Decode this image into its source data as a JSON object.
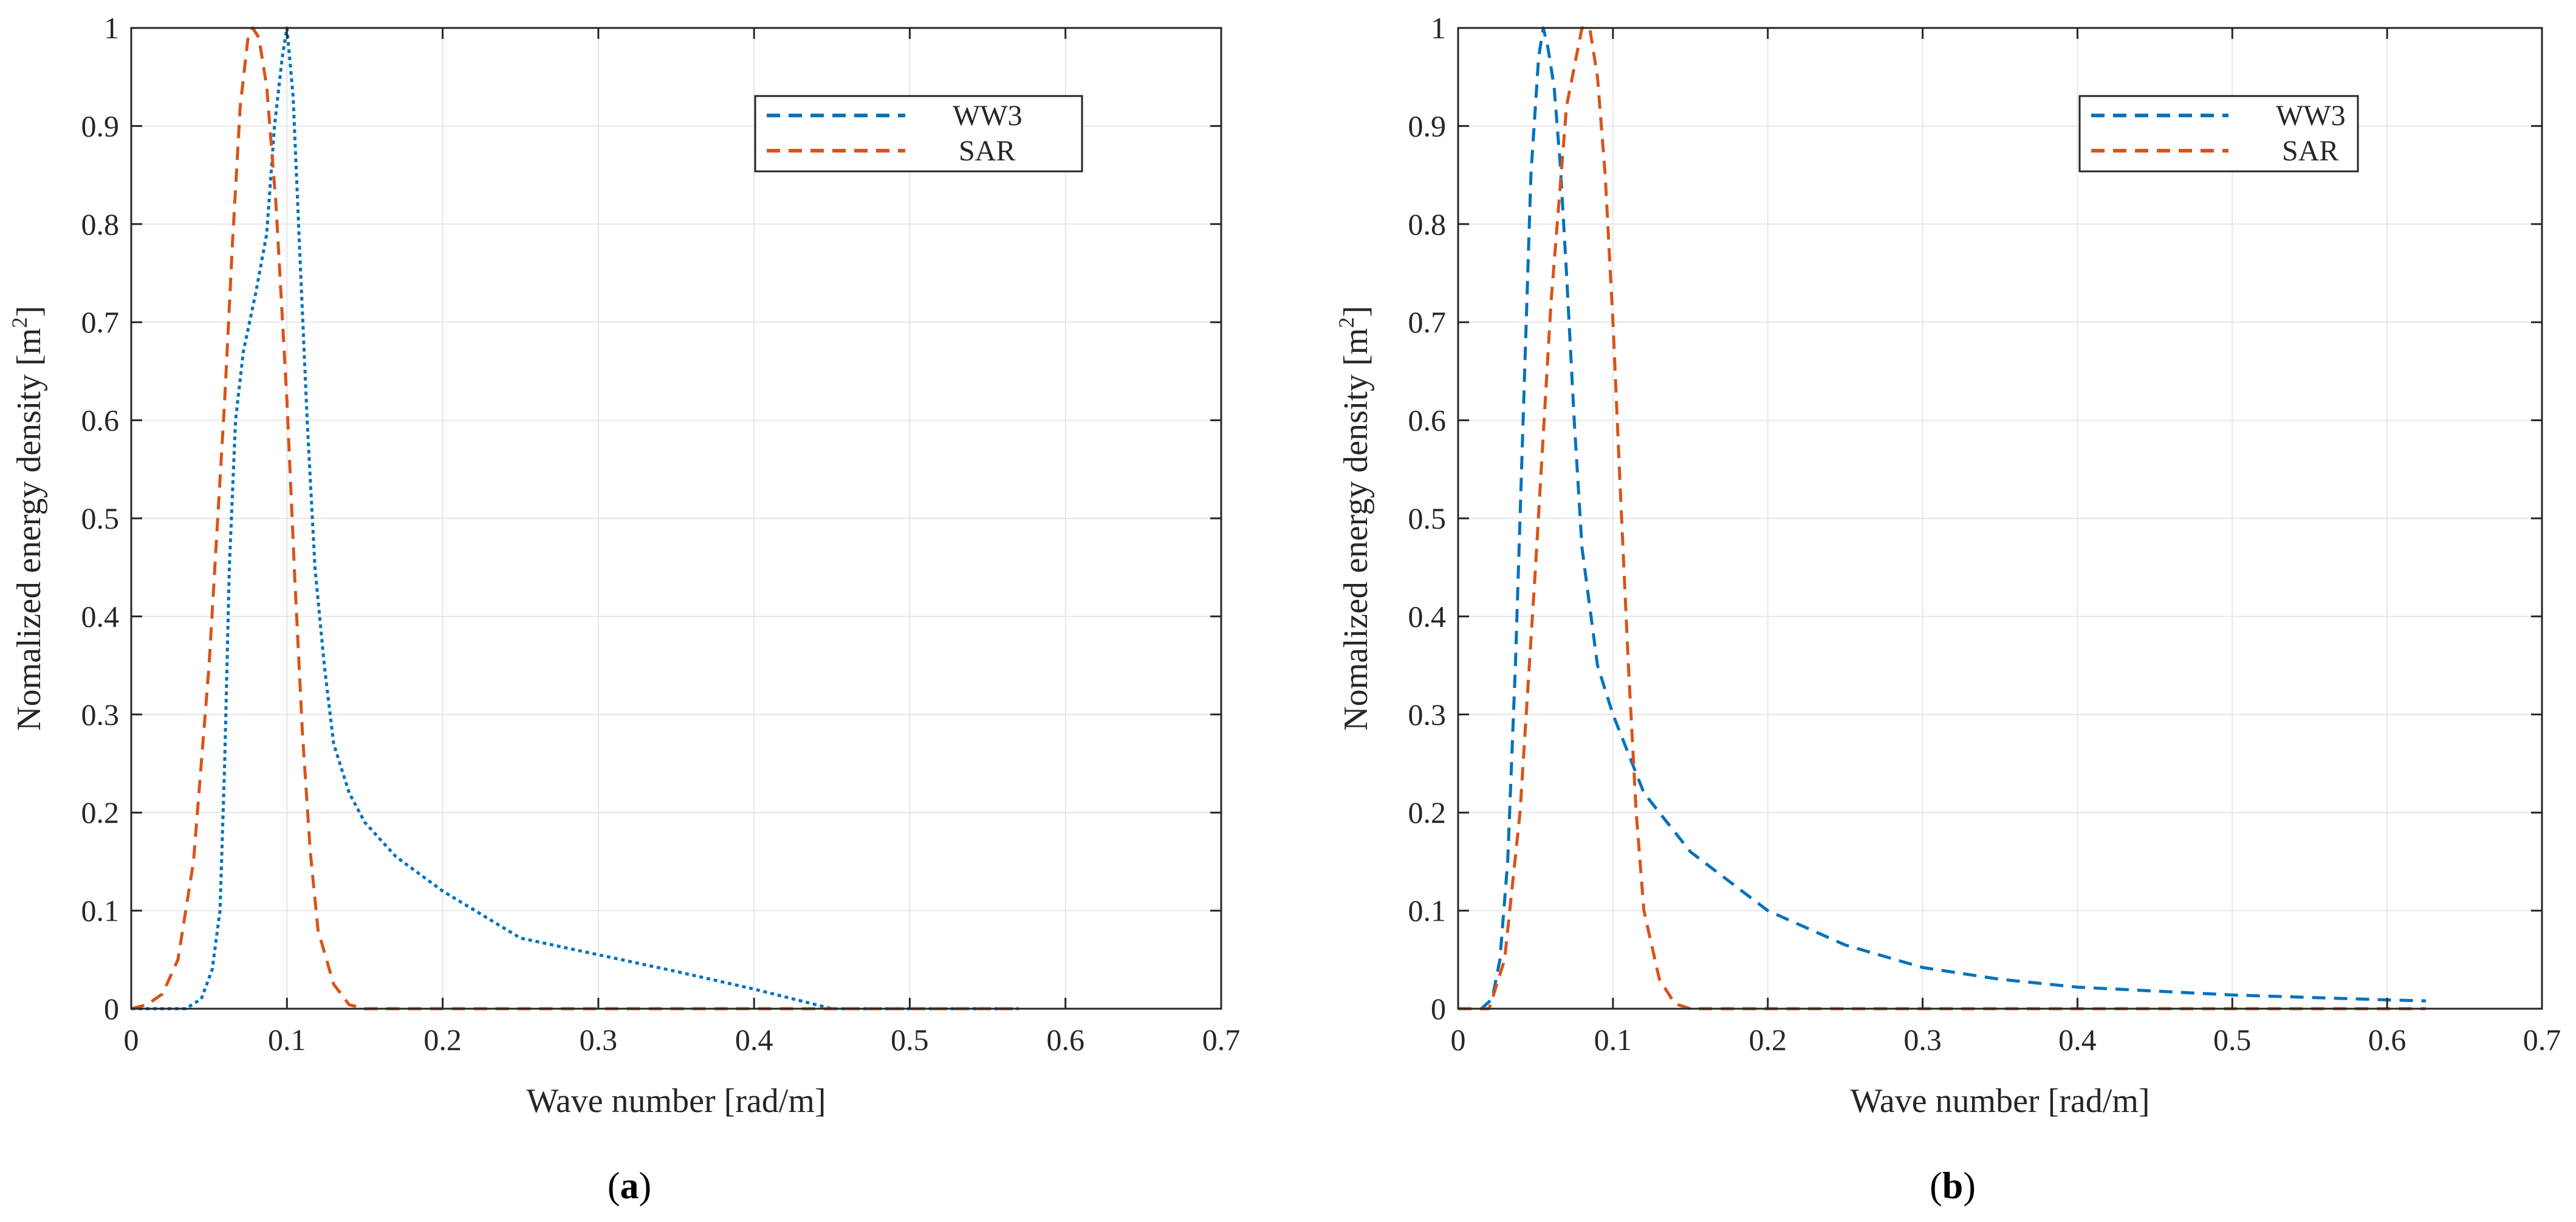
{
  "chart_data": [
    {
      "type": "line",
      "panel": "a",
      "caption": {
        "open": "(",
        "letter": "a",
        "close": ")"
      },
      "title": "",
      "xlabel": "Wave number [rad/m]",
      "ylabel_prefix": "Nomalized energy density [m",
      "ylabel_sup": "2",
      "ylabel_suffix": "]",
      "xlim": [
        0,
        0.7
      ],
      "ylim": [
        0,
        1
      ],
      "xticks": [
        0,
        0.1,
        0.2,
        0.3,
        0.4,
        0.5,
        0.6,
        0.7
      ],
      "xtick_labels": [
        "0",
        "0.1",
        "0.2",
        "0.3",
        "0.4",
        "0.5",
        "0.6",
        "0.7"
      ],
      "yticks": [
        0,
        0.1,
        0.2,
        0.3,
        0.4,
        0.5,
        0.6,
        0.7,
        0.8,
        0.9,
        1
      ],
      "ytick_labels": [
        "0",
        "0.1",
        "0.2",
        "0.3",
        "0.4",
        "0.5",
        "0.6",
        "0.7",
        "0.8",
        "0.9",
        "1"
      ],
      "grid": true,
      "legend_position": "top-right",
      "series": [
        {
          "name": "WW3",
          "color": "#0072BD",
          "dash": "dotted",
          "points": [
            [
              0.0,
              0
            ],
            [
              0.035,
              0
            ],
            [
              0.045,
              0.01
            ],
            [
              0.052,
              0.04
            ],
            [
              0.057,
              0.1
            ],
            [
              0.06,
              0.25
            ],
            [
              0.063,
              0.45
            ],
            [
              0.067,
              0.6
            ],
            [
              0.072,
              0.67
            ],
            [
              0.08,
              0.73
            ],
            [
              0.087,
              0.79
            ],
            [
              0.092,
              0.9
            ],
            [
              0.097,
              0.97
            ],
            [
              0.1,
              1.0
            ],
            [
              0.104,
              0.93
            ],
            [
              0.108,
              0.78
            ],
            [
              0.113,
              0.6
            ],
            [
              0.118,
              0.45
            ],
            [
              0.124,
              0.35
            ],
            [
              0.13,
              0.27
            ],
            [
              0.14,
              0.22
            ],
            [
              0.15,
              0.19
            ],
            [
              0.17,
              0.155
            ],
            [
              0.2,
              0.12
            ],
            [
              0.25,
              0.072
            ],
            [
              0.3,
              0.055
            ],
            [
              0.35,
              0.038
            ],
            [
              0.4,
              0.02
            ],
            [
              0.45,
              0.0
            ],
            [
              0.5,
              0.0
            ],
            [
              0.57,
              0.0
            ]
          ]
        },
        {
          "name": "SAR",
          "color": "#D95319",
          "dash": "dashed",
          "points": [
            [
              0.0,
              0.0
            ],
            [
              0.01,
              0.004
            ],
            [
              0.02,
              0.015
            ],
            [
              0.03,
              0.05
            ],
            [
              0.04,
              0.15
            ],
            [
              0.05,
              0.35
            ],
            [
              0.06,
              0.62
            ],
            [
              0.065,
              0.78
            ],
            [
              0.07,
              0.92
            ],
            [
              0.075,
              0.99
            ],
            [
              0.078,
              1.0
            ],
            [
              0.082,
              0.99
            ],
            [
              0.087,
              0.94
            ],
            [
              0.093,
              0.82
            ],
            [
              0.1,
              0.62
            ],
            [
              0.105,
              0.44
            ],
            [
              0.11,
              0.28
            ],
            [
              0.115,
              0.16
            ],
            [
              0.12,
              0.08
            ],
            [
              0.13,
              0.025
            ],
            [
              0.14,
              0.004
            ],
            [
              0.15,
              0.0
            ],
            [
              0.2,
              0.0
            ],
            [
              0.3,
              0.0
            ],
            [
              0.4,
              0.0
            ],
            [
              0.5,
              0.0
            ],
            [
              0.57,
              0.0
            ]
          ]
        }
      ]
    },
    {
      "type": "line",
      "panel": "b",
      "caption": {
        "open": "(",
        "letter": "b",
        "close": ")"
      },
      "title": "",
      "xlabel": "Wave number [rad/m]",
      "ylabel_prefix": "Nomalized energy density [m",
      "ylabel_sup": "2",
      "ylabel_suffix": "]",
      "xlim": [
        0,
        0.7
      ],
      "ylim": [
        0,
        1
      ],
      "xticks": [
        0,
        0.1,
        0.2,
        0.3,
        0.4,
        0.5,
        0.6,
        0.7
      ],
      "xtick_labels": [
        "0",
        "0.1",
        "0.2",
        "0.3",
        "0.4",
        "0.5",
        "0.6",
        "0.7"
      ],
      "yticks": [
        0,
        0.1,
        0.2,
        0.3,
        0.4,
        0.5,
        0.6,
        0.7,
        0.8,
        0.9,
        1
      ],
      "ytick_labels": [
        "0",
        "0.1",
        "0.2",
        "0.3",
        "0.4",
        "0.5",
        "0.6",
        "0.7",
        "0.8",
        "0.9",
        "1"
      ],
      "grid": true,
      "legend_position": "top-right",
      "series": [
        {
          "name": "WW3",
          "color": "#0072BD",
          "dash": "dashed",
          "points": [
            [
              0.0,
              0.0
            ],
            [
              0.015,
              0.0
            ],
            [
              0.022,
              0.01
            ],
            [
              0.027,
              0.05
            ],
            [
              0.032,
              0.15
            ],
            [
              0.037,
              0.35
            ],
            [
              0.042,
              0.6
            ],
            [
              0.047,
              0.85
            ],
            [
              0.052,
              0.97
            ],
            [
              0.055,
              1.0
            ],
            [
              0.058,
              0.98
            ],
            [
              0.062,
              0.94
            ],
            [
              0.066,
              0.86
            ],
            [
              0.07,
              0.75
            ],
            [
              0.075,
              0.6
            ],
            [
              0.08,
              0.47
            ],
            [
              0.09,
              0.35
            ],
            [
              0.1,
              0.3
            ],
            [
              0.12,
              0.22
            ],
            [
              0.15,
              0.16
            ],
            [
              0.2,
              0.1
            ],
            [
              0.25,
              0.065
            ],
            [
              0.3,
              0.042
            ],
            [
              0.35,
              0.03
            ],
            [
              0.4,
              0.022
            ],
            [
              0.5,
              0.014
            ],
            [
              0.6,
              0.009
            ],
            [
              0.625,
              0.008
            ]
          ]
        },
        {
          "name": "SAR",
          "color": "#D95319",
          "dash": "dashed",
          "points": [
            [
              0.0,
              0.0
            ],
            [
              0.02,
              0.0
            ],
            [
              0.03,
              0.05
            ],
            [
              0.04,
              0.2
            ],
            [
              0.05,
              0.45
            ],
            [
              0.06,
              0.72
            ],
            [
              0.07,
              0.92
            ],
            [
              0.08,
              1.0
            ],
            [
              0.085,
              1.0
            ],
            [
              0.09,
              0.95
            ],
            [
              0.095,
              0.85
            ],
            [
              0.1,
              0.7
            ],
            [
              0.105,
              0.52
            ],
            [
              0.11,
              0.35
            ],
            [
              0.115,
              0.2
            ],
            [
              0.12,
              0.1
            ],
            [
              0.13,
              0.03
            ],
            [
              0.14,
              0.005
            ],
            [
              0.15,
              0.0
            ],
            [
              0.2,
              0.0
            ],
            [
              0.3,
              0.0
            ],
            [
              0.4,
              0.0
            ],
            [
              0.5,
              0.0
            ],
            [
              0.6,
              0.0
            ],
            [
              0.625,
              0.0
            ]
          ]
        }
      ]
    }
  ]
}
